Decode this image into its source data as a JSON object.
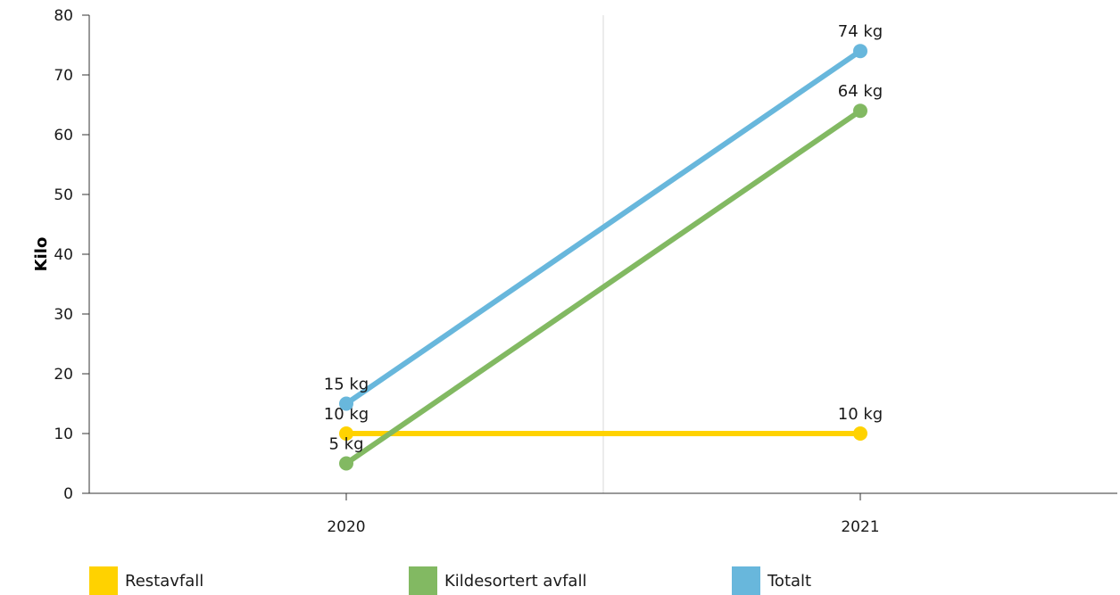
{
  "chart_data": {
    "type": "line",
    "title": "",
    "xlabel": "",
    "ylabel": "Kilo",
    "categories": [
      "2020",
      "2021"
    ],
    "ylim": [
      0,
      80
    ],
    "yticks": [
      0,
      10,
      20,
      30,
      40,
      50,
      60,
      70,
      80
    ],
    "grid": "vertical",
    "legend_position": "bottom-left",
    "unit_suffix": " kg",
    "series": [
      {
        "name": "Restavfall",
        "color": "#ffd200",
        "values": [
          10,
          10
        ]
      },
      {
        "name": "Kildesortert avfall",
        "color": "#82b962",
        "values": [
          5,
          64
        ]
      },
      {
        "name": "Totalt",
        "color": "#68b7dc",
        "values": [
          15,
          74
        ]
      }
    ]
  }
}
